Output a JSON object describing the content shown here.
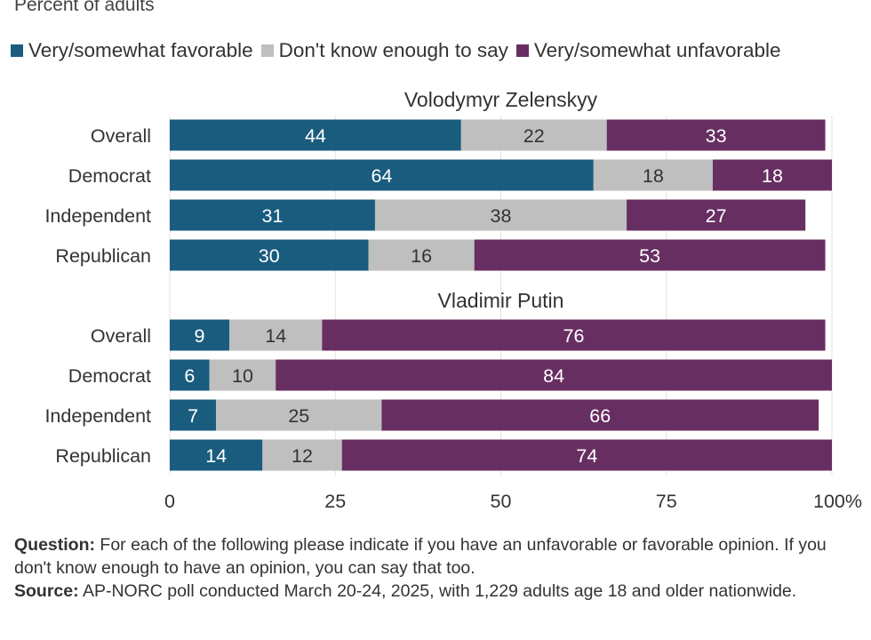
{
  "chart_data": {
    "type": "bar",
    "orientation": "horizontal",
    "stacked": true,
    "subtitle": "Percent of adults",
    "legend": [
      {
        "name": "Very/somewhat favorable",
        "color": "#1a5c7e"
      },
      {
        "name": "Don't know enough to say",
        "color": "#bfbfbf"
      },
      {
        "name": "Very/somewhat unfavorable",
        "color": "#672e62"
      }
    ],
    "legend_position": "top",
    "xlim": [
      0,
      100
    ],
    "x_ticks": [
      "0",
      "25",
      "50",
      "75",
      "100%"
    ],
    "grid": true,
    "panels": [
      {
        "title": "Volodymyr Zelenskyy",
        "categories": [
          "Overall",
          "Democrat",
          "Independent",
          "Republican"
        ],
        "series": [
          {
            "name": "Very/somewhat favorable",
            "values": [
              44,
              64,
              31,
              30
            ]
          },
          {
            "name": "Don't know enough to say",
            "values": [
              22,
              18,
              38,
              16
            ]
          },
          {
            "name": "Very/somewhat unfavorable",
            "values": [
              33,
              18,
              27,
              53
            ]
          }
        ]
      },
      {
        "title": "Vladimir Putin",
        "categories": [
          "Overall",
          "Democrat",
          "Independent",
          "Republican"
        ],
        "series": [
          {
            "name": "Very/somewhat favorable",
            "values": [
              9,
              6,
              7,
              14
            ]
          },
          {
            "name": "Don't know enough to say",
            "values": [
              14,
              10,
              25,
              12
            ]
          },
          {
            "name": "Very/somewhat unfavorable",
            "values": [
              76,
              84,
              66,
              74
            ]
          }
        ]
      }
    ]
  },
  "notes": {
    "question_label": "Question:",
    "question_text": "For each of the following please indicate if you have an unfavorable or favorable opinion. If you don't know enough to have an opinion, you can say that too.",
    "source_label": "Source:",
    "source_text": "AP-NORC poll conducted March 20-24, 2025, with 1,229 adults age 18 and older nationwide."
  }
}
